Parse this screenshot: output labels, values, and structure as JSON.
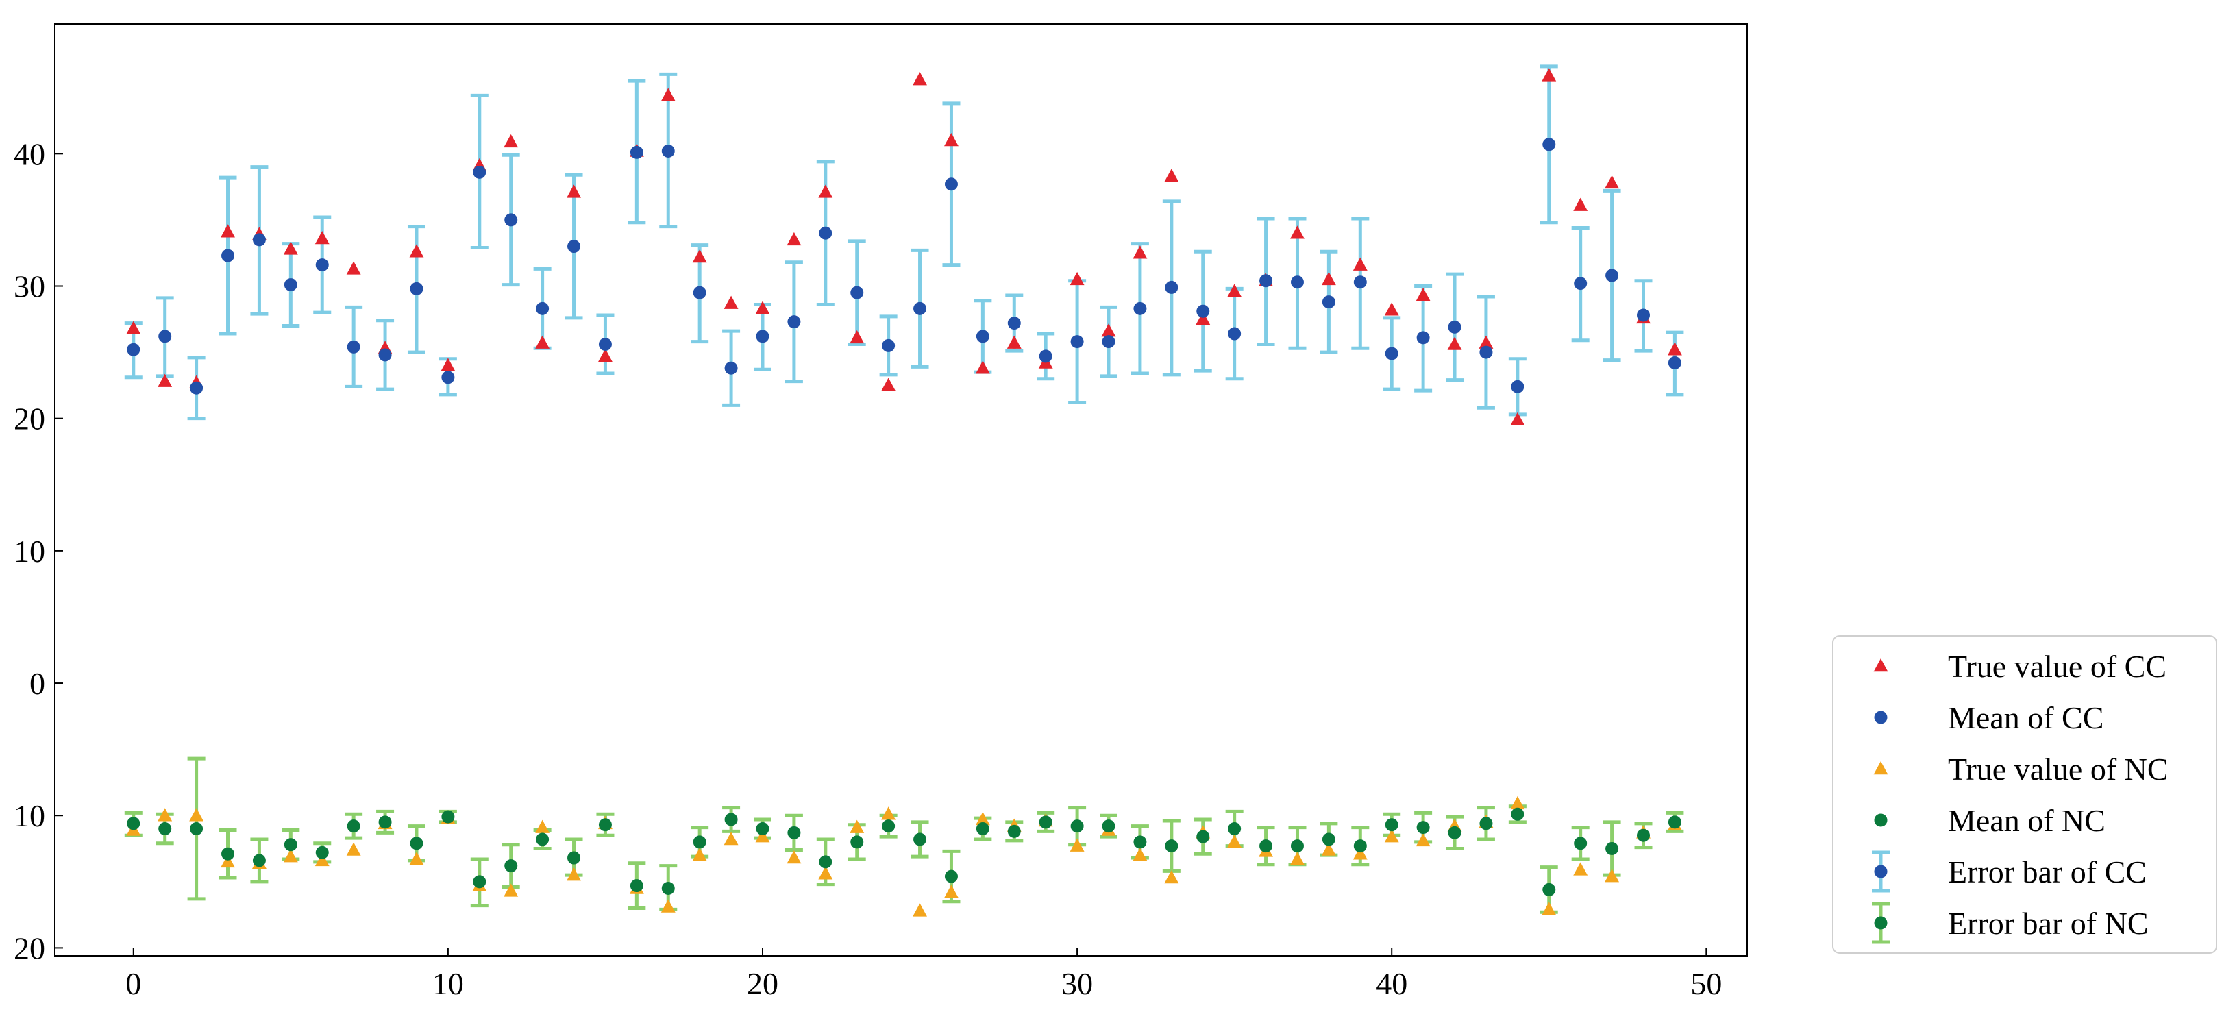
{
  "chart_data": {
    "type": "scatter",
    "title": "",
    "xlabel": "",
    "ylabel": "",
    "xlim": [
      -2.5,
      51.3
    ],
    "ylim": [
      -20.6,
      49.8
    ],
    "xticks": [
      0,
      10,
      20,
      30,
      40,
      50
    ],
    "yticks": [
      -20,
      -10,
      0,
      10,
      20,
      30,
      40
    ],
    "ytick_labels": [
      "20",
      "10",
      "0",
      "10",
      "20",
      "30",
      "40"
    ],
    "grid": false,
    "legend_position": "lower-right outside",
    "x": [
      0,
      1,
      2,
      3,
      4,
      5,
      6,
      7,
      8,
      9,
      10,
      11,
      12,
      13,
      14,
      15,
      16,
      17,
      18,
      19,
      20,
      21,
      22,
      23,
      24,
      25,
      26,
      27,
      28,
      29,
      30,
      31,
      32,
      33,
      34,
      35,
      36,
      37,
      38,
      39,
      40,
      41,
      42,
      43,
      44,
      45,
      46,
      47,
      48,
      49
    ],
    "series": [
      {
        "name": "True value of CC",
        "marker": "triangle",
        "color": "#e3232c",
        "values": [
          26.8,
          22.8,
          22.7,
          34.1,
          33.9,
          32.8,
          33.6,
          31.3,
          25.3,
          32.6,
          24.0,
          39.1,
          40.9,
          25.7,
          37.1,
          24.7,
          40.2,
          44.4,
          32.2,
          28.7,
          28.3,
          33.5,
          37.1,
          26.1,
          22.5,
          45.6,
          41.0,
          23.8,
          25.7,
          24.2,
          30.5,
          26.6,
          32.5,
          38.3,
          27.5,
          29.6,
          30.4,
          34.0,
          30.5,
          31.6,
          28.2,
          29.3,
          25.6,
          25.7,
          19.9,
          45.9,
          36.1,
          37.8,
          27.6,
          25.2
        ]
      },
      {
        "name": "Mean of CC",
        "marker": "circle",
        "color": "#2250a8",
        "values": [
          25.2,
          26.2,
          22.3,
          32.3,
          33.5,
          30.1,
          31.6,
          25.4,
          24.8,
          29.8,
          23.1,
          38.6,
          35.0,
          28.3,
          33.0,
          25.6,
          40.1,
          40.2,
          29.5,
          23.8,
          26.2,
          27.3,
          34.0,
          29.5,
          25.5,
          28.3,
          37.7,
          26.2,
          27.2,
          24.7,
          25.8,
          25.8,
          28.3,
          29.9,
          28.1,
          26.4,
          30.4,
          30.3,
          28.8,
          30.3,
          24.9,
          26.1,
          26.9,
          25.0,
          22.4,
          40.7,
          30.2,
          30.8,
          27.8,
          24.2
        ]
      },
      {
        "name": "Error bar of CC",
        "marker": "errorbar",
        "color": "#7ecce5",
        "lower": [
          23.1,
          23.2,
          20.0,
          26.4,
          27.9,
          27.0,
          28.0,
          22.4,
          22.2,
          25.0,
          21.8,
          32.9,
          30.1,
          25.3,
          27.6,
          23.4,
          34.8,
          34.5,
          25.8,
          21.0,
          23.7,
          22.8,
          28.6,
          25.6,
          23.3,
          23.9,
          31.6,
          23.5,
          25.1,
          23.0,
          21.2,
          23.2,
          23.4,
          23.3,
          23.6,
          23.0,
          25.6,
          25.3,
          25.0,
          25.3,
          22.2,
          22.1,
          22.9,
          20.8,
          20.3,
          34.8,
          25.9,
          24.4,
          25.1,
          21.8
        ],
        "upper": [
          27.2,
          29.1,
          24.6,
          38.2,
          39.0,
          33.2,
          35.2,
          28.4,
          27.4,
          34.5,
          24.5,
          44.4,
          39.9,
          31.3,
          38.4,
          27.8,
          45.5,
          46.0,
          33.1,
          26.6,
          28.6,
          31.8,
          39.4,
          33.4,
          27.7,
          32.7,
          43.8,
          28.9,
          29.3,
          26.4,
          30.4,
          28.4,
          33.2,
          36.4,
          32.6,
          29.8,
          35.1,
          35.1,
          32.6,
          35.1,
          27.6,
          30.0,
          30.9,
          29.2,
          24.5,
          46.6,
          34.4,
          37.2,
          30.4,
          26.5
        ]
      },
      {
        "name": "True value of NC",
        "marker": "triangle",
        "color": "#f3a51c",
        "values": [
          -11.1,
          -10.0,
          -10.0,
          -13.5,
          -13.6,
          -13.1,
          -13.4,
          -12.6,
          -10.6,
          -13.3,
          -10.2,
          -15.3,
          -15.7,
          -10.9,
          -14.5,
          -10.6,
          -15.5,
          -16.9,
          -13.0,
          -11.8,
          -11.6,
          -13.2,
          -14.4,
          -10.9,
          -9.9,
          -17.2,
          -15.8,
          -10.3,
          -10.8,
          -10.4,
          -12.3,
          -11.1,
          -13.0,
          -14.7,
          -11.3,
          -12.0,
          -12.7,
          -13.3,
          -12.6,
          -12.9,
          -11.6,
          -11.9,
          -10.8,
          -10.5,
          -9.1,
          -17.1,
          -14.1,
          -14.6,
          -11.3,
          -10.7
        ]
      },
      {
        "name": "Mean of NC",
        "marker": "circle",
        "color": "#0a7a3c",
        "values": [
          -10.6,
          -11.0,
          -11.0,
          -12.9,
          -13.4,
          -12.2,
          -12.8,
          -10.8,
          -10.5,
          -12.1,
          -10.1,
          -15.0,
          -13.8,
          -11.8,
          -13.2,
          -10.7,
          -15.3,
          -15.5,
          -12.0,
          -10.3,
          -11.0,
          -11.3,
          -13.5,
          -12.0,
          -10.8,
          -11.8,
          -14.6,
          -11.0,
          -11.2,
          -10.5,
          -10.8,
          -10.8,
          -12.0,
          -12.3,
          -11.6,
          -11.0,
          -12.3,
          -12.3,
          -11.8,
          -12.3,
          -10.7,
          -10.9,
          -11.3,
          -10.6,
          -9.9,
          -15.6,
          -12.1,
          -12.5,
          -11.5,
          -10.5
        ]
      },
      {
        "name": "Error bar of NC",
        "marker": "errorbar",
        "color": "#8ccf6b",
        "lower": [
          -11.5,
          -12.1,
          -16.3,
          -14.7,
          -15.0,
          -13.3,
          -13.5,
          -11.7,
          -11.3,
          -13.4,
          -10.5,
          -16.8,
          -15.4,
          -12.5,
          -14.5,
          -11.5,
          -17.0,
          -17.1,
          -13.1,
          -11.2,
          -11.7,
          -12.6,
          -15.2,
          -13.3,
          -11.6,
          -13.1,
          -16.5,
          -11.8,
          -11.9,
          -11.2,
          -12.2,
          -11.6,
          -13.2,
          -14.2,
          -12.9,
          -12.3,
          -13.7,
          -13.7,
          -13.0,
          -13.7,
          -11.5,
          -12.0,
          -12.5,
          -11.8,
          -10.5,
          -17.3,
          -13.3,
          -14.5,
          -12.4,
          -11.2
        ],
        "upper": [
          -9.8,
          -9.9,
          -5.7,
          -11.1,
          -11.8,
          -11.1,
          -12.1,
          -9.9,
          -9.7,
          -10.8,
          -9.7,
          -13.3,
          -12.2,
          -11.1,
          -11.8,
          -9.9,
          -13.6,
          -13.8,
          -10.9,
          -9.4,
          -10.3,
          -10.0,
          -11.8,
          -10.7,
          -10.0,
          -10.5,
          -12.7,
          -10.2,
          -10.5,
          -9.8,
          -9.4,
          -10.0,
          -10.8,
          -10.4,
          -10.3,
          -9.7,
          -10.9,
          -10.9,
          -10.6,
          -10.9,
          -9.9,
          -9.8,
          -10.1,
          -9.4,
          -9.3,
          -13.9,
          -10.9,
          -10.5,
          -10.6,
          -9.8
        ]
      }
    ]
  }
}
